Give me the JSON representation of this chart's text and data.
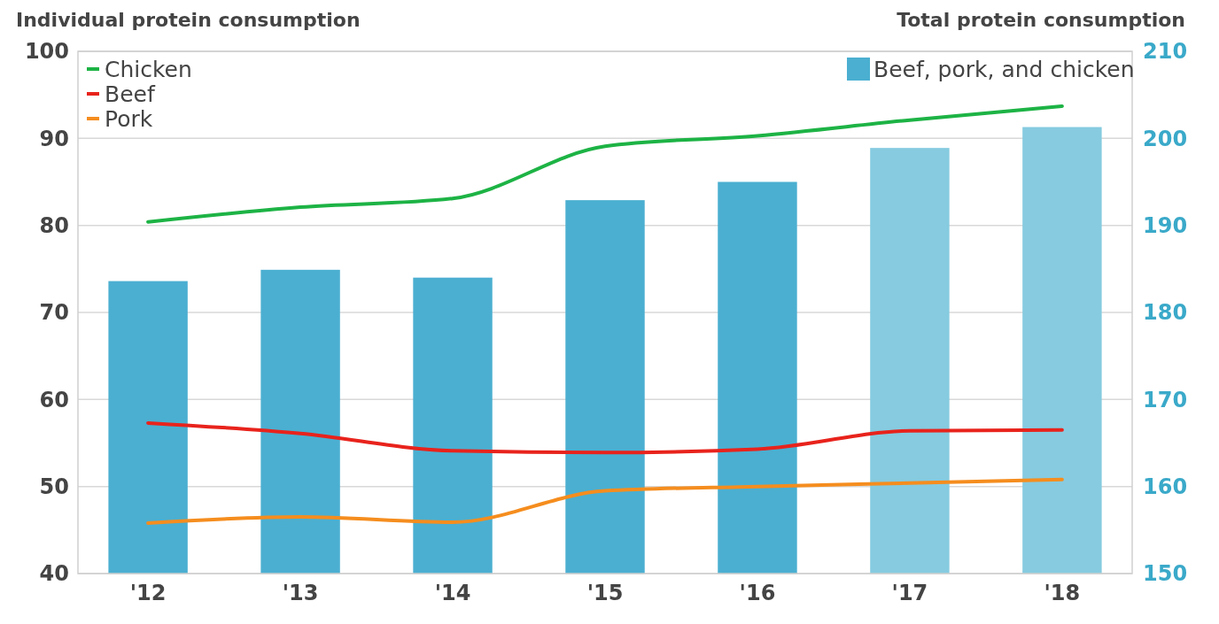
{
  "chart_data": {
    "type": "bar",
    "ylabel": "Individual protein consumption",
    "y2label": "Total protein consumption",
    "categories": [
      "'12",
      "'13",
      "'14",
      "'15",
      "'16",
      "'17",
      "'18"
    ],
    "series": [
      {
        "name": "Beef, pork, and chicken",
        "axis": "y2",
        "color": "#4bafd1",
        "colors": [
          "#4bafd1",
          "#4bafd1",
          "#4bafd1",
          "#4bafd1",
          "#4bafd1",
          "#86cbe0",
          "#86cbe0"
        ],
        "values": [
          183.6,
          184.9,
          184.0,
          192.9,
          195.0,
          198.9,
          201.3
        ]
      },
      {
        "name": "Chicken",
        "type": "line",
        "color": "#1db345",
        "values": [
          80.4,
          82.1,
          83.1,
          89.1,
          90.3,
          92.1,
          93.7
        ]
      },
      {
        "name": "Beef",
        "type": "line",
        "color": "#e8231c",
        "values": [
          57.3,
          56.1,
          54.1,
          53.9,
          54.3,
          56.4,
          56.5
        ]
      },
      {
        "name": "Pork",
        "type": "line",
        "color": "#f58d1e",
        "values": [
          45.8,
          46.5,
          45.9,
          49.5,
          50.0,
          50.4,
          50.8
        ]
      }
    ],
    "ylim": [
      40,
      100
    ],
    "yticks": [
      40,
      50,
      60,
      70,
      80,
      90,
      100
    ],
    "y2lim": [
      150,
      210
    ],
    "y2ticks": [
      150,
      160,
      170,
      180,
      190,
      200,
      210
    ],
    "grid": "y",
    "legend": "top",
    "line_style": "solid",
    "marker": "none"
  }
}
